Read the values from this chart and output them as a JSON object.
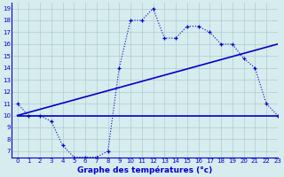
{
  "hours": [
    0,
    1,
    2,
    3,
    4,
    5,
    6,
    7,
    8,
    9,
    10,
    11,
    12,
    13,
    14,
    15,
    16,
    17,
    18,
    19,
    20,
    21,
    22,
    23
  ],
  "temp": [
    11,
    10,
    10,
    9.5,
    7.5,
    6.5,
    6.5,
    6.5,
    7.0,
    14.0,
    18.0,
    18.0,
    19.0,
    16.5,
    16.5,
    17.5,
    17.5,
    17.0,
    16.0,
    16.0,
    14.8,
    14.0,
    11.0,
    10.0
  ],
  "line1_x": [
    0,
    23
  ],
  "line1_y": [
    10.0,
    16.0
  ],
  "line2_x": [
    0,
    23
  ],
  "line2_y": [
    10.0,
    10.0
  ],
  "bg_color": "#d6ecee",
  "grid_color": "#b0cccc",
  "line_color": "#0000cc",
  "xlabel": "Graphe des températures (°c)",
  "xlim": [
    -0.5,
    23
  ],
  "ylim": [
    6.5,
    19.5
  ],
  "yticks": [
    7,
    8,
    9,
    10,
    11,
    12,
    13,
    14,
    15,
    16,
    17,
    18,
    19
  ],
  "xticks": [
    0,
    1,
    2,
    3,
    4,
    5,
    6,
    7,
    8,
    9,
    10,
    11,
    12,
    13,
    14,
    15,
    16,
    17,
    18,
    19,
    20,
    21,
    22,
    23
  ]
}
